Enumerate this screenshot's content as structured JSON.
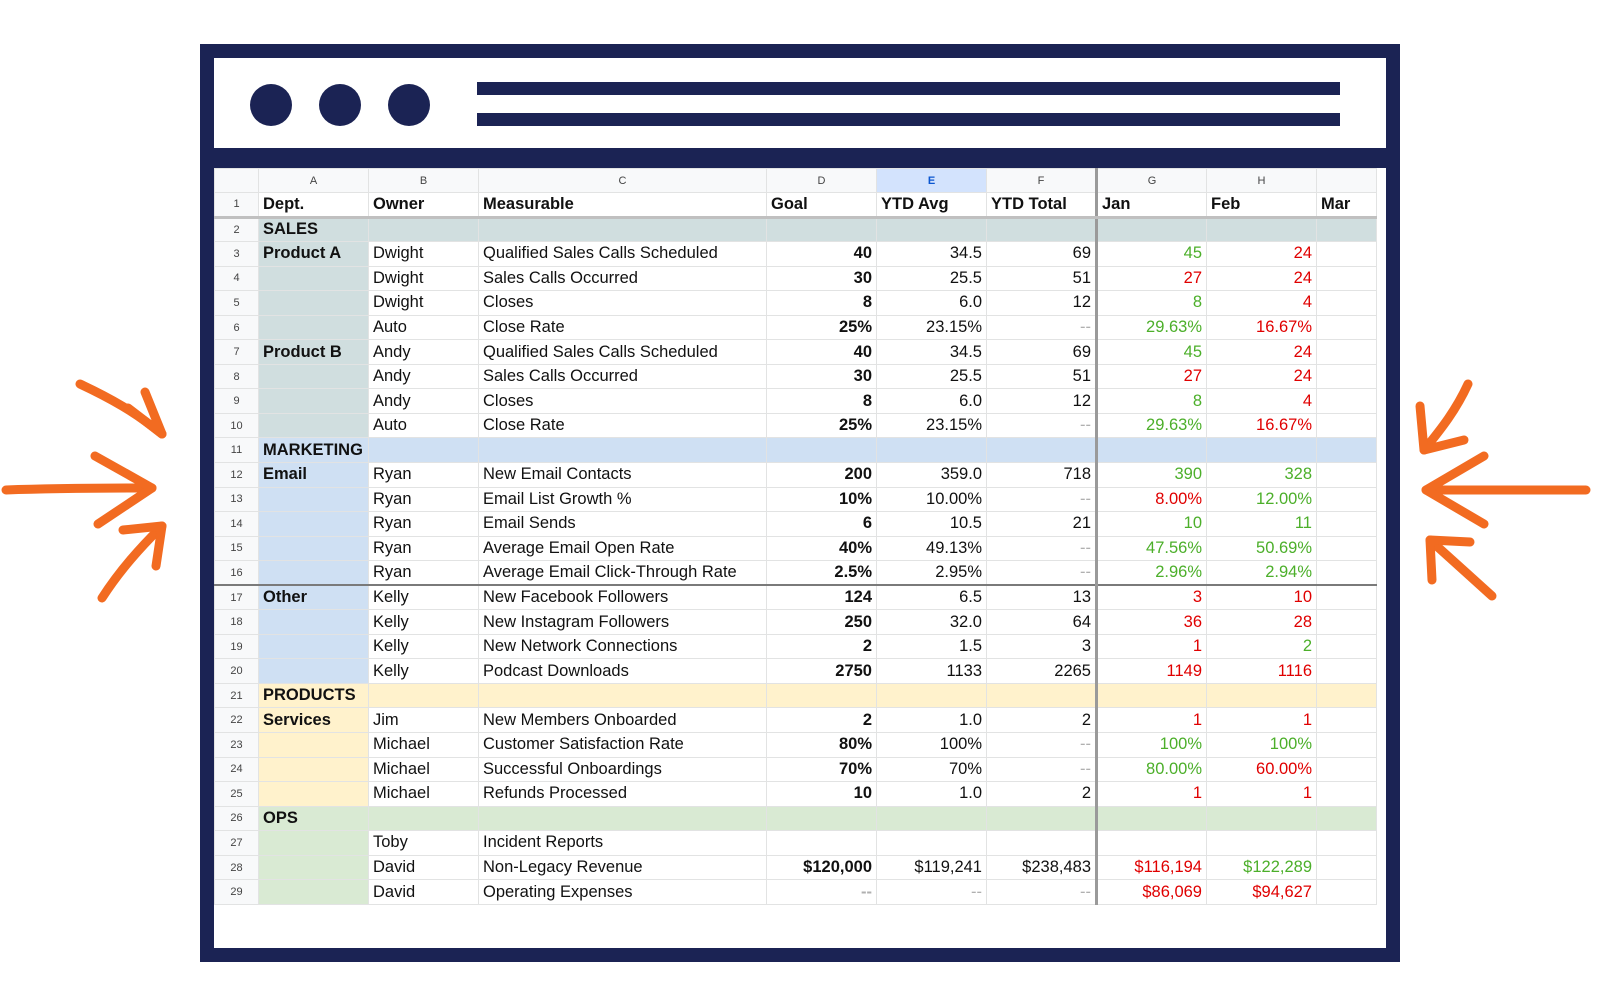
{
  "sheet": {
    "columns": [
      "A",
      "B",
      "C",
      "D",
      "E",
      "F",
      "G",
      "H"
    ],
    "selected_column": "E",
    "headers": [
      "Dept.",
      "Owner",
      "Measurable",
      "Goal",
      "YTD Avg",
      "YTD Total",
      "Jan",
      "Feb",
      "Mar"
    ],
    "rows": [
      {
        "n": "1"
      },
      {
        "n": "2",
        "dept": "SALES"
      },
      {
        "n": "3",
        "dept": "Product A",
        "owner": "Dwight",
        "measurable": "Qualified Sales Calls Scheduled",
        "goal": "40",
        "ytd_avg": "34.5",
        "ytd_total": "69",
        "jan": "45",
        "feb": "24"
      },
      {
        "n": "4",
        "owner": "Dwight",
        "measurable": "Sales Calls Occurred",
        "goal": "30",
        "ytd_avg": "25.5",
        "ytd_total": "51",
        "jan": "27",
        "feb": "24"
      },
      {
        "n": "5",
        "owner": "Dwight",
        "measurable": "Closes",
        "goal": "8",
        "ytd_avg": "6.0",
        "ytd_total": "12",
        "jan": "8",
        "feb": "4"
      },
      {
        "n": "6",
        "owner": "Auto",
        "measurable": "Close Rate",
        "goal": "25%",
        "ytd_avg": "23.15%",
        "ytd_total": "--",
        "jan": "29.63%",
        "feb": "16.67%"
      },
      {
        "n": "7",
        "dept": "Product B",
        "owner": "Andy",
        "measurable": "Qualified Sales Calls Scheduled",
        "goal": "40",
        "ytd_avg": "34.5",
        "ytd_total": "69",
        "jan": "45",
        "feb": "24"
      },
      {
        "n": "8",
        "owner": "Andy",
        "measurable": "Sales Calls Occurred",
        "goal": "30",
        "ytd_avg": "25.5",
        "ytd_total": "51",
        "jan": "27",
        "feb": "24"
      },
      {
        "n": "9",
        "owner": "Andy",
        "measurable": "Closes",
        "goal": "8",
        "ytd_avg": "6.0",
        "ytd_total": "12",
        "jan": "8",
        "feb": "4"
      },
      {
        "n": "10",
        "owner": "Auto",
        "measurable": "Close Rate",
        "goal": "25%",
        "ytd_avg": "23.15%",
        "ytd_total": "--",
        "jan": "29.63%",
        "feb": "16.67%"
      },
      {
        "n": "11",
        "dept": "MARKETING"
      },
      {
        "n": "12",
        "dept": "Email",
        "owner": "Ryan",
        "measurable": "New Email Contacts",
        "goal": "200",
        "ytd_avg": "359.0",
        "ytd_total": "718",
        "jan": "390",
        "feb": "328"
      },
      {
        "n": "13",
        "owner": "Ryan",
        "measurable": "Email List Growth %",
        "goal": "10%",
        "ytd_avg": "10.00%",
        "ytd_total": "--",
        "jan": "8.00%",
        "feb": "12.00%"
      },
      {
        "n": "14",
        "owner": "Ryan",
        "measurable": "Email Sends",
        "goal": "6",
        "ytd_avg": "10.5",
        "ytd_total": "21",
        "jan": "10",
        "feb": "11"
      },
      {
        "n": "15",
        "owner": "Ryan",
        "measurable": "Average Email Open Rate",
        "goal": "40%",
        "ytd_avg": "49.13%",
        "ytd_total": "--",
        "jan": "47.56%",
        "feb": "50.69%"
      },
      {
        "n": "16",
        "owner": "Ryan",
        "measurable": "Average Email Click-Through Rate",
        "goal": "2.5%",
        "ytd_avg": "2.95%",
        "ytd_total": "--",
        "jan": "2.96%",
        "feb": "2.94%"
      },
      {
        "n": "17",
        "dept": "Other",
        "owner": "Kelly",
        "measurable": "New Facebook Followers",
        "goal": "124",
        "ytd_avg": "6.5",
        "ytd_total": "13",
        "jan": "3",
        "feb": "10"
      },
      {
        "n": "18",
        "owner": "Kelly",
        "measurable": "New Instagram Followers",
        "goal": "250",
        "ytd_avg": "32.0",
        "ytd_total": "64",
        "jan": "36",
        "feb": "28"
      },
      {
        "n": "19",
        "owner": "Kelly",
        "measurable": "New Network Connections",
        "goal": "2",
        "ytd_avg": "1.5",
        "ytd_total": "3",
        "jan": "1",
        "feb": "2"
      },
      {
        "n": "20",
        "owner": "Kelly",
        "measurable": "Podcast Downloads",
        "goal": "2750",
        "ytd_avg": "1133",
        "ytd_total": "2265",
        "jan": "1149",
        "feb": "1116"
      },
      {
        "n": "21",
        "dept": "PRODUCTS"
      },
      {
        "n": "22",
        "dept": "Services",
        "owner": "Jim",
        "measurable": "New Members Onboarded",
        "goal": "2",
        "ytd_avg": "1.0",
        "ytd_total": "2",
        "jan": "1",
        "feb": "1"
      },
      {
        "n": "23",
        "owner": "Michael",
        "measurable": "Customer Satisfaction Rate",
        "goal": "80%",
        "ytd_avg": "100%",
        "ytd_total": "--",
        "jan": "100%",
        "feb": "100%"
      },
      {
        "n": "24",
        "owner": "Michael",
        "measurable": "Successful Onboardings",
        "goal": "70%",
        "ytd_avg": "70%",
        "ytd_total": "--",
        "jan": "80.00%",
        "feb": "60.00%"
      },
      {
        "n": "25",
        "owner": "Michael",
        "measurable": "Refunds Processed",
        "goal": "10",
        "ytd_avg": "1.0",
        "ytd_total": "2",
        "jan": "1",
        "feb": "1"
      },
      {
        "n": "26",
        "dept": "OPS"
      },
      {
        "n": "27",
        "owner": "Toby",
        "measurable": "Incident Reports"
      },
      {
        "n": "28",
        "owner": "David",
        "measurable": "Non-Legacy Revenue",
        "goal": "$120,000",
        "ytd_avg": "$119,241",
        "ytd_total": "$238,483",
        "jan": "$116,194",
        "feb": "$122,289"
      },
      {
        "n": "29",
        "owner": "David",
        "measurable": "Operating Expenses",
        "goal": "--",
        "ytd_avg": "--",
        "ytd_total": "--",
        "jan": "$86,069",
        "feb": "$94,627"
      }
    ]
  },
  "colors": {
    "frame": "#1b2354",
    "accent_arrows": "#f26b21",
    "good": "#4caf2a",
    "bad": "#e00000"
  }
}
